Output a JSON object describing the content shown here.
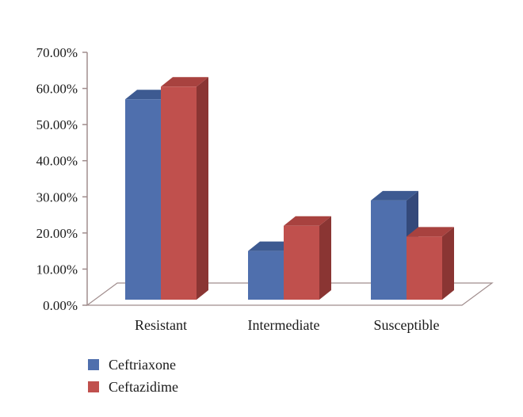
{
  "chart_data": {
    "type": "bar",
    "categories": [
      "Resistant",
      "Intermediate",
      "Susceptible"
    ],
    "series": [
      {
        "name": "Ceftriaxone",
        "values": [
          57,
          15,
          29
        ],
        "color": "#4f6fad",
        "color_top": "#3d5a91",
        "color_side": "#34497a"
      },
      {
        "name": "Ceftazidime",
        "values": [
          60.5,
          22,
          19
        ],
        "color": "#c0504d",
        "color_top": "#a8423f",
        "color_side": "#8a3533"
      }
    ],
    "ylim": [
      0,
      70
    ],
    "yticks": [
      "0.00%",
      "10.00%",
      "20.00%",
      "30.00%",
      "40.00%",
      "50.00%",
      "60.00%",
      "70.00%"
    ],
    "title": "",
    "xlabel": "",
    "ylabel": "",
    "grid": false,
    "legend_position": "bottom-left",
    "style": "3d-clustered-column"
  }
}
